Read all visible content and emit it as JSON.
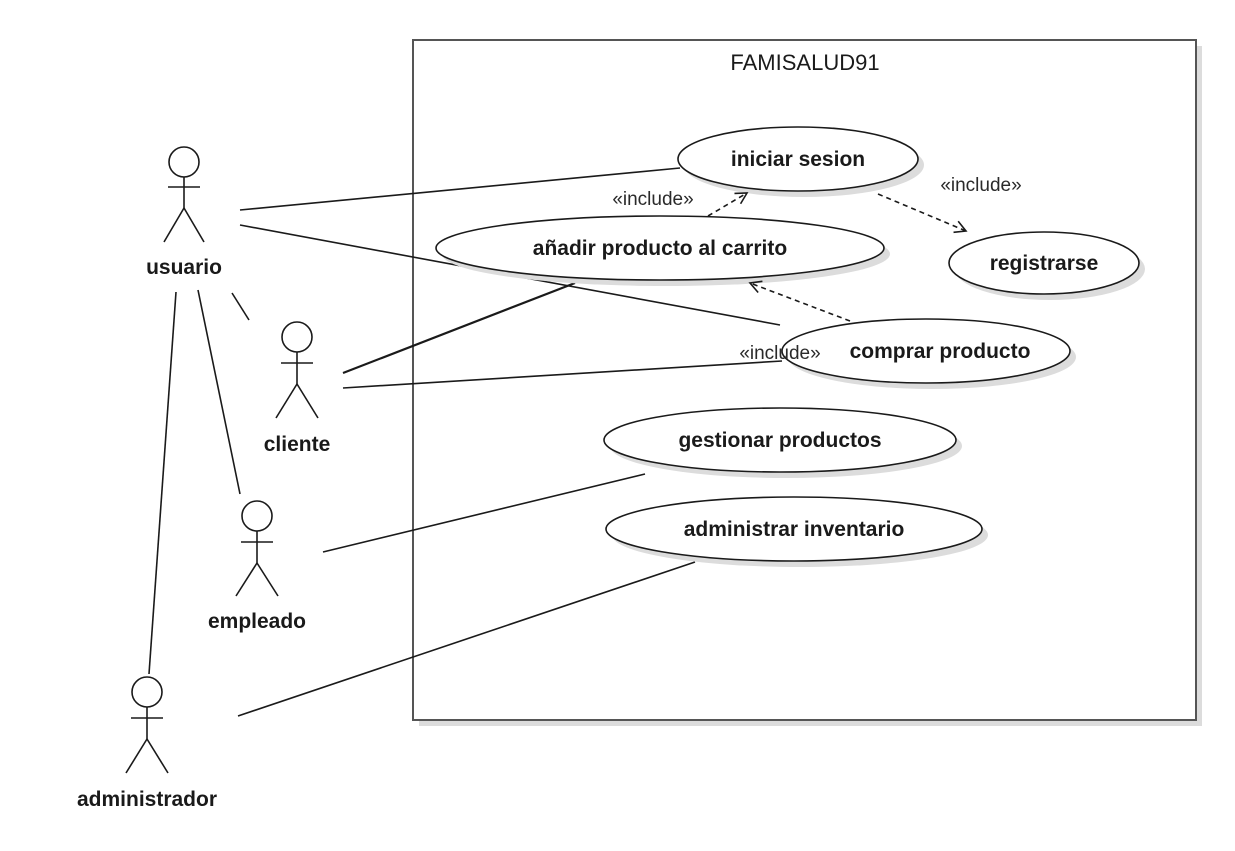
{
  "system": {
    "title": "FAMISALUD91"
  },
  "actors": {
    "usuario": "usuario",
    "cliente": "cliente",
    "empleado": "empleado",
    "administrador": "administrador"
  },
  "use_cases": {
    "iniciar_sesion": "iniciar sesion",
    "registrarse": "registrarse",
    "anadir_producto": "añadir producto al carrito",
    "comprar_producto": "comprar producto",
    "gestionar_productos": "gestionar productos",
    "administrar_inventario": "administrar inventario"
  },
  "stereotypes": {
    "include_1": "«include»",
    "include_2": "«include»",
    "include_3": "«include»"
  }
}
